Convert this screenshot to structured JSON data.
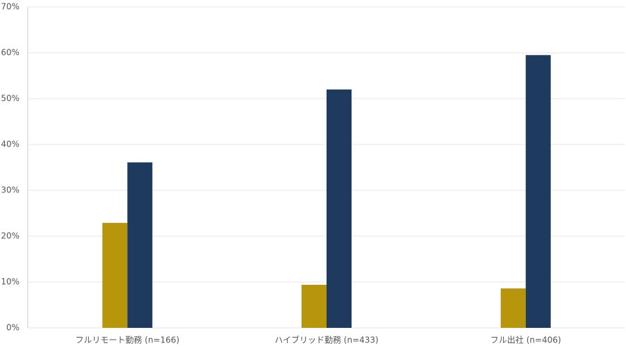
{
  "chart_data": {
    "type": "bar",
    "categories": [
      "フルリモート勤務 (n=166)",
      "ハイブリッド勤務 (n=433)",
      "フル出社 (n=406)"
    ],
    "series": [
      {
        "color": "#b8960c",
        "values": [
          22.9,
          9.4,
          8.6
        ]
      },
      {
        "color": "#1e3a5f",
        "values": [
          36.1,
          52.0,
          59.5
        ]
      }
    ],
    "ylim": [
      0,
      70
    ],
    "yticks": [
      {
        "value": 0,
        "label": "0%"
      },
      {
        "value": 10,
        "label": "10%"
      },
      {
        "value": 20,
        "label": "20%"
      },
      {
        "value": 30,
        "label": "30%"
      },
      {
        "value": 40,
        "label": "40%"
      },
      {
        "value": 50,
        "label": "50%"
      },
      {
        "value": 60,
        "label": "60%"
      },
      {
        "value": 70,
        "label": "70%"
      }
    ],
    "grid": true
  }
}
